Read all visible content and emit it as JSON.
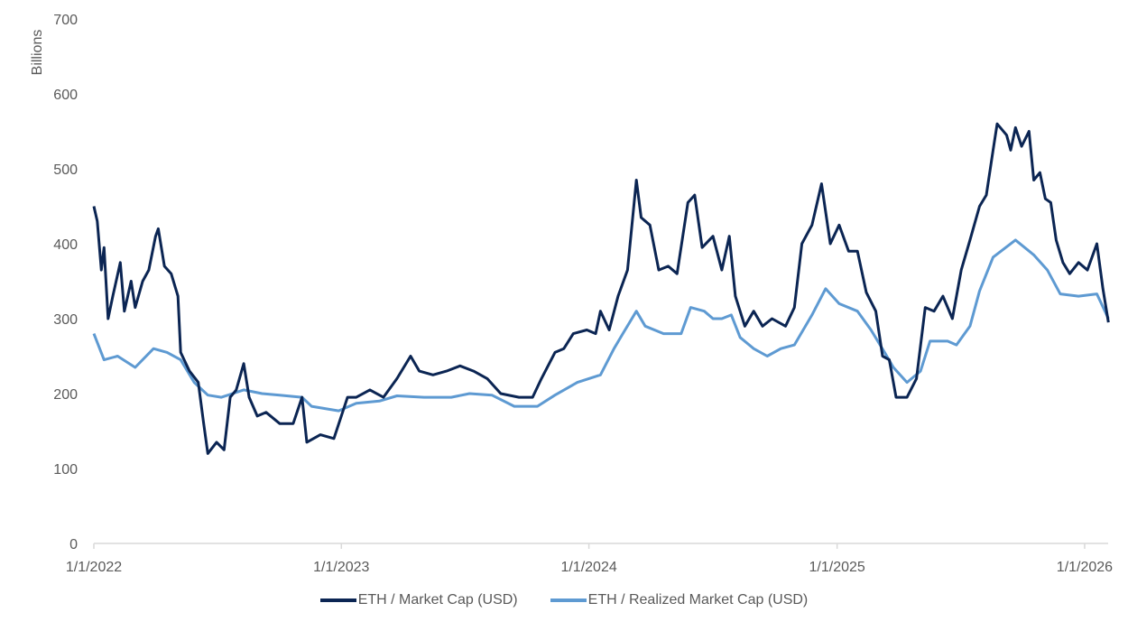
{
  "chart_data": {
    "type": "line",
    "title": "",
    "xlabel": "",
    "ylabel": "Billions",
    "x_unit": "days since 1/1/2022",
    "xlim": [
      0,
      1496
    ],
    "ylim": [
      0,
      700
    ],
    "yticks": [
      0,
      100,
      200,
      300,
      400,
      500,
      600,
      700
    ],
    "xticks": [
      {
        "day": 0,
        "label": "1/1/2022"
      },
      {
        "day": 365,
        "label": "1/1/2023"
      },
      {
        "day": 730,
        "label": "1/1/2024"
      },
      {
        "day": 1096,
        "label": "1/1/2025"
      },
      {
        "day": 1461,
        "label": "1/1/2026"
      }
    ],
    "grid": false,
    "legend_position": "bottom",
    "series": [
      {
        "name": "ETH / Market Cap (USD)",
        "color": "#0b2553",
        "x": [
          0,
          5,
          11,
          15,
          21,
          28,
          39,
          45,
          55,
          61,
          72,
          81,
          91,
          95,
          104,
          114,
          124,
          128,
          141,
          154,
          162,
          168,
          181,
          192,
          201,
          210,
          221,
          229,
          241,
          254,
          274,
          294,
          307,
          314,
          334,
          354,
          374,
          387,
          407,
          427,
          447,
          467,
          480,
          500,
          520,
          540,
          560,
          580,
          600,
          627,
          647,
          660,
          680,
          693,
          707,
          727,
          740,
          747,
          760,
          773,
          787,
          800,
          807,
          820,
          833,
          847,
          860,
          876,
          886,
          897,
          913,
          926,
          937,
          946,
          960,
          973,
          986,
          1000,
          1020,
          1033,
          1044,
          1059,
          1073,
          1086,
          1099,
          1113,
          1126,
          1139,
          1153,
          1163,
          1173,
          1183,
          1199,
          1213,
          1226,
          1239,
          1252,
          1266,
          1279,
          1292,
          1306,
          1316,
          1326,
          1332,
          1346,
          1352,
          1359,
          1368,
          1379,
          1386,
          1395,
          1403,
          1411,
          1419,
          1429,
          1439,
          1452,
          1465,
          1479,
          1488,
          1496
        ],
        "values": [
          450,
          430,
          365,
          395,
          300,
          330,
          375,
          310,
          350,
          315,
          350,
          365,
          410,
          420,
          370,
          360,
          330,
          255,
          230,
          215,
          160,
          120,
          135,
          125,
          195,
          205,
          240,
          195,
          170,
          175,
          160,
          160,
          195,
          135,
          145,
          140,
          195,
          195,
          205,
          195,
          220,
          250,
          230,
          225,
          230,
          237,
          230,
          220,
          200,
          195,
          195,
          220,
          255,
          260,
          280,
          285,
          280,
          310,
          285,
          330,
          365,
          485,
          435,
          425,
          365,
          370,
          360,
          455,
          465,
          395,
          410,
          365,
          410,
          330,
          290,
          310,
          290,
          300,
          290,
          315,
          400,
          425,
          480,
          400,
          425,
          390,
          390,
          335,
          310,
          250,
          245,
          195,
          195,
          220,
          315,
          310,
          330,
          300,
          365,
          405,
          450,
          465,
          525,
          560,
          545,
          525,
          555,
          530,
          550,
          485,
          495,
          460,
          455,
          405,
          375,
          360,
          375,
          365,
          400,
          340,
          295
        ]
      },
      {
        "name": "ETH / Realized Market Cap (USD)",
        "color": "#5e9ad2",
        "x": [
          0,
          15,
          35,
          61,
          88,
          108,
          128,
          148,
          168,
          188,
          221,
          248,
          274,
          307,
          321,
          361,
          387,
          421,
          447,
          487,
          527,
          554,
          587,
          620,
          654,
          680,
          713,
          747,
          767,
          780,
          800,
          813,
          840,
          866,
          880,
          900,
          913,
          926,
          940,
          953,
          973,
          993,
          1013,
          1033,
          1059,
          1079,
          1099,
          1126,
          1146,
          1166,
          1179,
          1199,
          1219,
          1233,
          1259,
          1272,
          1292,
          1306,
          1326,
          1359,
          1386,
          1406,
          1425,
          1452,
          1479,
          1496
        ],
        "values": [
          280,
          245,
          250,
          235,
          260,
          255,
          245,
          215,
          198,
          195,
          205,
          200,
          198,
          195,
          183,
          177,
          187,
          190,
          197,
          195,
          195,
          200,
          198,
          183,
          183,
          198,
          215,
          225,
          260,
          280,
          310,
          290,
          280,
          280,
          315,
          310,
          300,
          300,
          305,
          275,
          260,
          250,
          260,
          265,
          305,
          340,
          320,
          310,
          285,
          255,
          235,
          215,
          230,
          270,
          270,
          265,
          290,
          337,
          382,
          405,
          385,
          365,
          333,
          330,
          333,
          300
        ]
      }
    ]
  }
}
